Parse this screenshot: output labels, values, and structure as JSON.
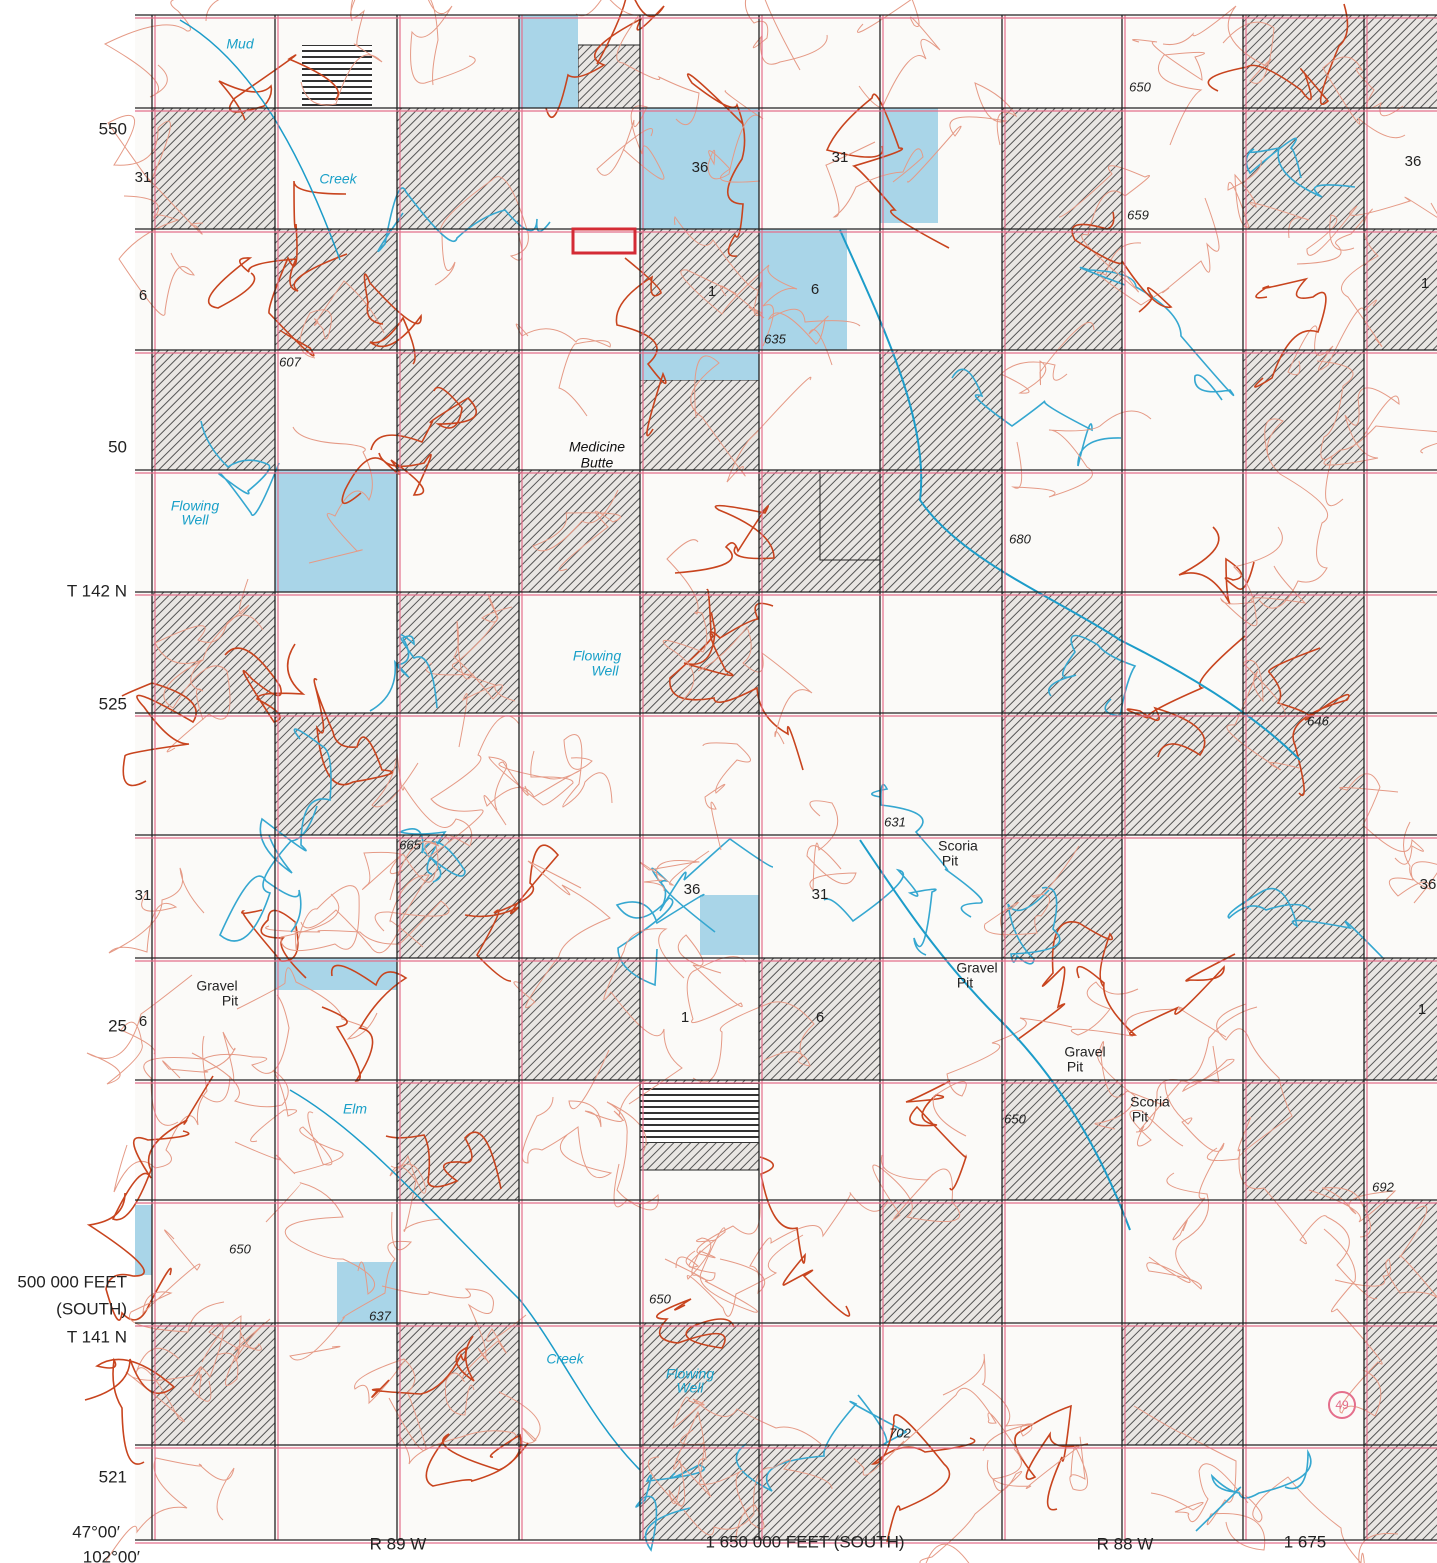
{
  "margin_labels": [
    "550",
    "50",
    "T 142 N",
    "525",
    "25",
    "500 000 FEET",
    "(SOUTH)",
    "T 141 N",
    "521",
    "47°00′",
    "102°00′"
  ],
  "bottom_labels": [
    "R 89 W",
    "1 650 000 FEET (SOUTH)",
    "R 88 W",
    "1 675"
  ],
  "section_numbers": [
    "31",
    "36",
    "31",
    "36",
    "6",
    "1",
    "6",
    "1",
    "36",
    "31",
    "36",
    "31",
    "6",
    "1",
    "6",
    "1"
  ],
  "elevations": [
    "607",
    "635",
    "659",
    "650",
    "665",
    "631",
    "646",
    "692",
    "650",
    "637",
    "650",
    "702",
    "680",
    "650"
  ],
  "place_labels": [
    "Mud",
    "Creek",
    "Medicine",
    "Butte",
    "Flowing",
    "Well",
    "Flowing",
    "Well",
    "Elm",
    "Creek",
    "Flowing",
    "Well",
    "Scoria",
    "Pit",
    "Gravel",
    "Pit",
    "Gravel",
    "Pit",
    "Gravel",
    "Pit",
    "Scoria",
    "Pit"
  ],
  "route_shield": "49"
}
